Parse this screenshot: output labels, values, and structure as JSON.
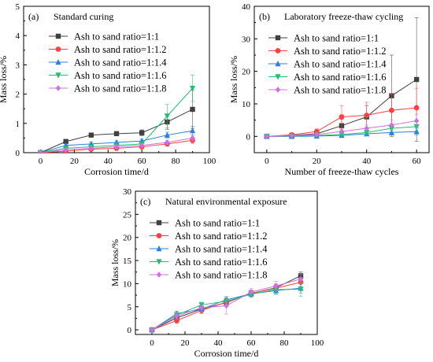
{
  "chart_data": [
    {
      "type": "line",
      "panel_label": "(a)",
      "title": "Standard curing",
      "xlabel": "Corrosion time/d",
      "ylabel": "Mass loss/%",
      "xlim": [
        -10,
        100
      ],
      "ylim": [
        0,
        5
      ],
      "xticks": [
        "0",
        "20",
        "40",
        "60",
        "80",
        "100"
      ],
      "yticks": [
        "0",
        "1",
        "2",
        "3",
        "4",
        "5"
      ],
      "x": [
        0,
        15,
        30,
        45,
        60,
        75,
        90
      ],
      "legend_position": "top-right",
      "series": [
        {
          "name": "Ash to sand ratio=1:1",
          "values": [
            0,
            0.38,
            0.6,
            0.65,
            0.68,
            1.05,
            1.48
          ],
          "error": [
            0,
            0.08,
            0.05,
            0.06,
            0.1,
            0.25,
            0.65
          ]
        },
        {
          "name": "Ash to sand ratio=1:1.2",
          "values": [
            0,
            0.05,
            0.12,
            0.15,
            0.2,
            0.3,
            0.42
          ],
          "error": [
            0,
            0.02,
            0.03,
            0.04,
            0.05,
            0.08,
            0.1
          ]
        },
        {
          "name": "Ash to sand ratio=1:1.4",
          "values": [
            0,
            0.25,
            0.3,
            0.35,
            0.4,
            0.6,
            0.75
          ],
          "error": [
            0,
            0.05,
            0.06,
            0.06,
            0.07,
            0.1,
            0.15
          ]
        },
        {
          "name": "Ash to sand ratio=1:1.6",
          "values": [
            0,
            0.15,
            0.2,
            0.25,
            0.3,
            1.25,
            2.2
          ],
          "error": [
            0,
            0.04,
            0.05,
            0.06,
            0.08,
            0.4,
            0.45
          ]
        },
        {
          "name": "Ash to sand ratio=1:1.8",
          "values": [
            0,
            0.1,
            0.15,
            0.2,
            0.25,
            0.35,
            0.5
          ],
          "error": [
            0,
            0.03,
            0.04,
            0.05,
            0.06,
            0.08,
            0.1
          ]
        }
      ],
      "colors": [
        "#404040",
        "#ff4040",
        "#2a7fe0",
        "#20c070",
        "#d070e0"
      ]
    },
    {
      "type": "line",
      "panel_label": "(b)",
      "title": "Laboratory freeze-thaw cycling",
      "xlabel": "Number of freeze-thaw cycles",
      "ylabel": "Mass loss/%",
      "xlim": [
        -5,
        65
      ],
      "ylim": [
        -5,
        40
      ],
      "xticks": [
        "0",
        "20",
        "40",
        "60"
      ],
      "yticks": [
        "0",
        "10",
        "20",
        "30",
        "40"
      ],
      "x": [
        0,
        10,
        20,
        30,
        40,
        50,
        60
      ],
      "legend_position": "top-right",
      "series": [
        {
          "name": "Ash to sand ratio=1:1",
          "values": [
            0,
            0.3,
            0.8,
            3.3,
            6.0,
            12.5,
            17.5
          ],
          "error": [
            0,
            0.2,
            0.5,
            2.0,
            3.5,
            12.5,
            19
          ]
        },
        {
          "name": "Ash to sand ratio=1:1.2",
          "values": [
            0,
            0.5,
            1.5,
            6.0,
            6.5,
            8.0,
            8.8
          ],
          "error": [
            0,
            0.3,
            0.8,
            3.5,
            4.0,
            5.0,
            6.0
          ]
        },
        {
          "name": "Ash to sand ratio=1:1.4",
          "values": [
            0,
            0,
            0.1,
            0.3,
            0.8,
            1.2,
            1.5
          ],
          "error": [
            0,
            0.1,
            0.2,
            0.4,
            0.6,
            0.8,
            1.0
          ]
        },
        {
          "name": "Ash to sand ratio=1:1.6",
          "values": [
            0,
            0.1,
            0.3,
            0.6,
            1.2,
            2.5,
            3.0
          ],
          "error": [
            0,
            0.1,
            0.2,
            0.4,
            0.7,
            1.2,
            1.5
          ]
        },
        {
          "name": "Ash to sand ratio=1:1.8",
          "values": [
            0,
            0.2,
            0.6,
            1.5,
            2.5,
            3.5,
            4.8
          ],
          "error": [
            0,
            0.1,
            0.3,
            0.6,
            1.0,
            1.5,
            2.0
          ]
        }
      ],
      "colors": [
        "#404040",
        "#ff4040",
        "#2a7fe0",
        "#20c070",
        "#d070e0"
      ]
    },
    {
      "type": "line",
      "panel_label": "(c)",
      "title": "Natural environmental exposure",
      "xlabel": "Corrosion time/d",
      "ylabel": "Mass loss/%",
      "xlim": [
        -10,
        100
      ],
      "ylim": [
        -1,
        30
      ],
      "xticks": [
        "0",
        "20",
        "40",
        "60",
        "80",
        "100"
      ],
      "yticks": [
        "0",
        "5",
        "10",
        "15",
        "20",
        "25",
        "30"
      ],
      "x": [
        0,
        15,
        30,
        45,
        60,
        75,
        90
      ],
      "legend_position": "top-right",
      "series": [
        {
          "name": "Ash to sand ratio=1:1",
          "values": [
            0,
            2.6,
            4.5,
            5.9,
            7.9,
            9.1,
            11.7
          ],
          "error": [
            0,
            0.5,
            0.6,
            0.7,
            0.6,
            0.8,
            0.8
          ]
        },
        {
          "name": "Ash to sand ratio=1:1.2",
          "values": [
            0,
            2.0,
            4.2,
            6.0,
            7.9,
            9.0,
            10.3
          ],
          "error": [
            0,
            0.6,
            0.7,
            0.8,
            0.7,
            0.9,
            1.0
          ]
        },
        {
          "name": "Ash to sand ratio=1:1.4",
          "values": [
            0,
            3.5,
            4.5,
            6.5,
            7.8,
            8.5,
            9.0
          ],
          "error": [
            0,
            0.5,
            0.6,
            0.7,
            0.6,
            0.8,
            1.0
          ]
        },
        {
          "name": "Ash to sand ratio=1:1.6",
          "values": [
            0,
            3.2,
            5.4,
            6.2,
            7.7,
            8.7,
            8.8
          ],
          "error": [
            0,
            0.6,
            0.6,
            0.8,
            0.7,
            0.9,
            1.5
          ]
        },
        {
          "name": "Ash to sand ratio=1:1.8",
          "values": [
            0,
            3.0,
            4.8,
            5.2,
            8.2,
            9.5,
            11.0
          ],
          "error": [
            0,
            0.7,
            0.8,
            1.8,
            0.8,
            1.0,
            1.0
          ]
        }
      ],
      "colors": [
        "#404040",
        "#ff4040",
        "#2a7fe0",
        "#20c070",
        "#d070e0"
      ]
    }
  ]
}
